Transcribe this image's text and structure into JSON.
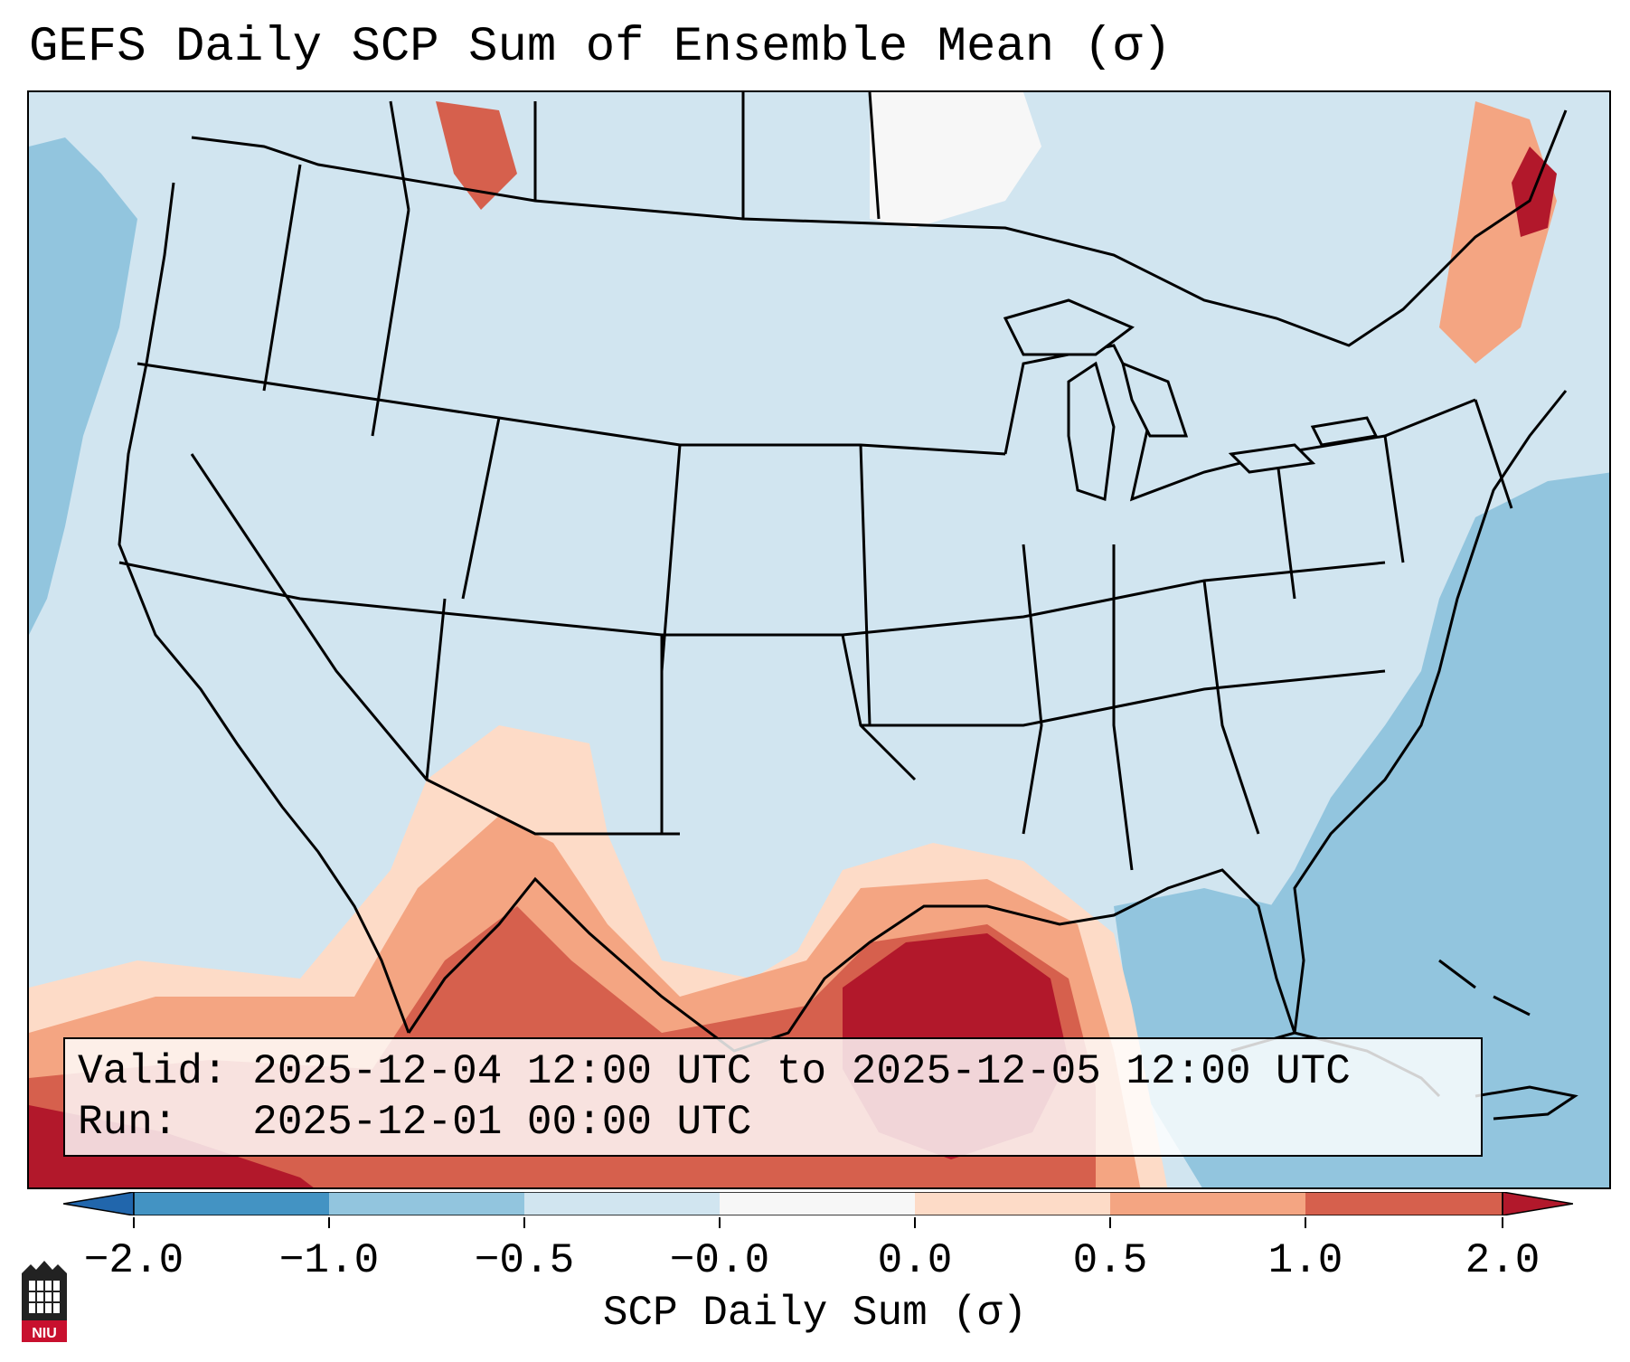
{
  "title": "GEFS Daily SCP Sum of Ensemble Mean (σ)",
  "info": {
    "valid_label": "Valid:",
    "valid_value": "2025-12-04 12:00 UTC to 2025-12-05 12:00 UTC",
    "run_label": "Run:",
    "run_value": "2025-12-01 00:00 UTC"
  },
  "colorbar": {
    "label": "SCP Daily Sum (σ)",
    "ticks": [
      "−2.0",
      "−1.0",
      "−0.5",
      "−0.0",
      "0.0",
      "0.5",
      "1.0",
      "2.0"
    ],
    "colors": [
      "#4393c3",
      "#92c5de",
      "#d1e5f0",
      "#f7f7f7",
      "#fddbc7",
      "#f4a582",
      "#d6604d",
      "#b2182b"
    ],
    "extend_low_color": "#2166ac",
    "extend_high_color": "#b2182b"
  },
  "logo": {
    "text": "NIU",
    "color": "#c8102e"
  }
}
